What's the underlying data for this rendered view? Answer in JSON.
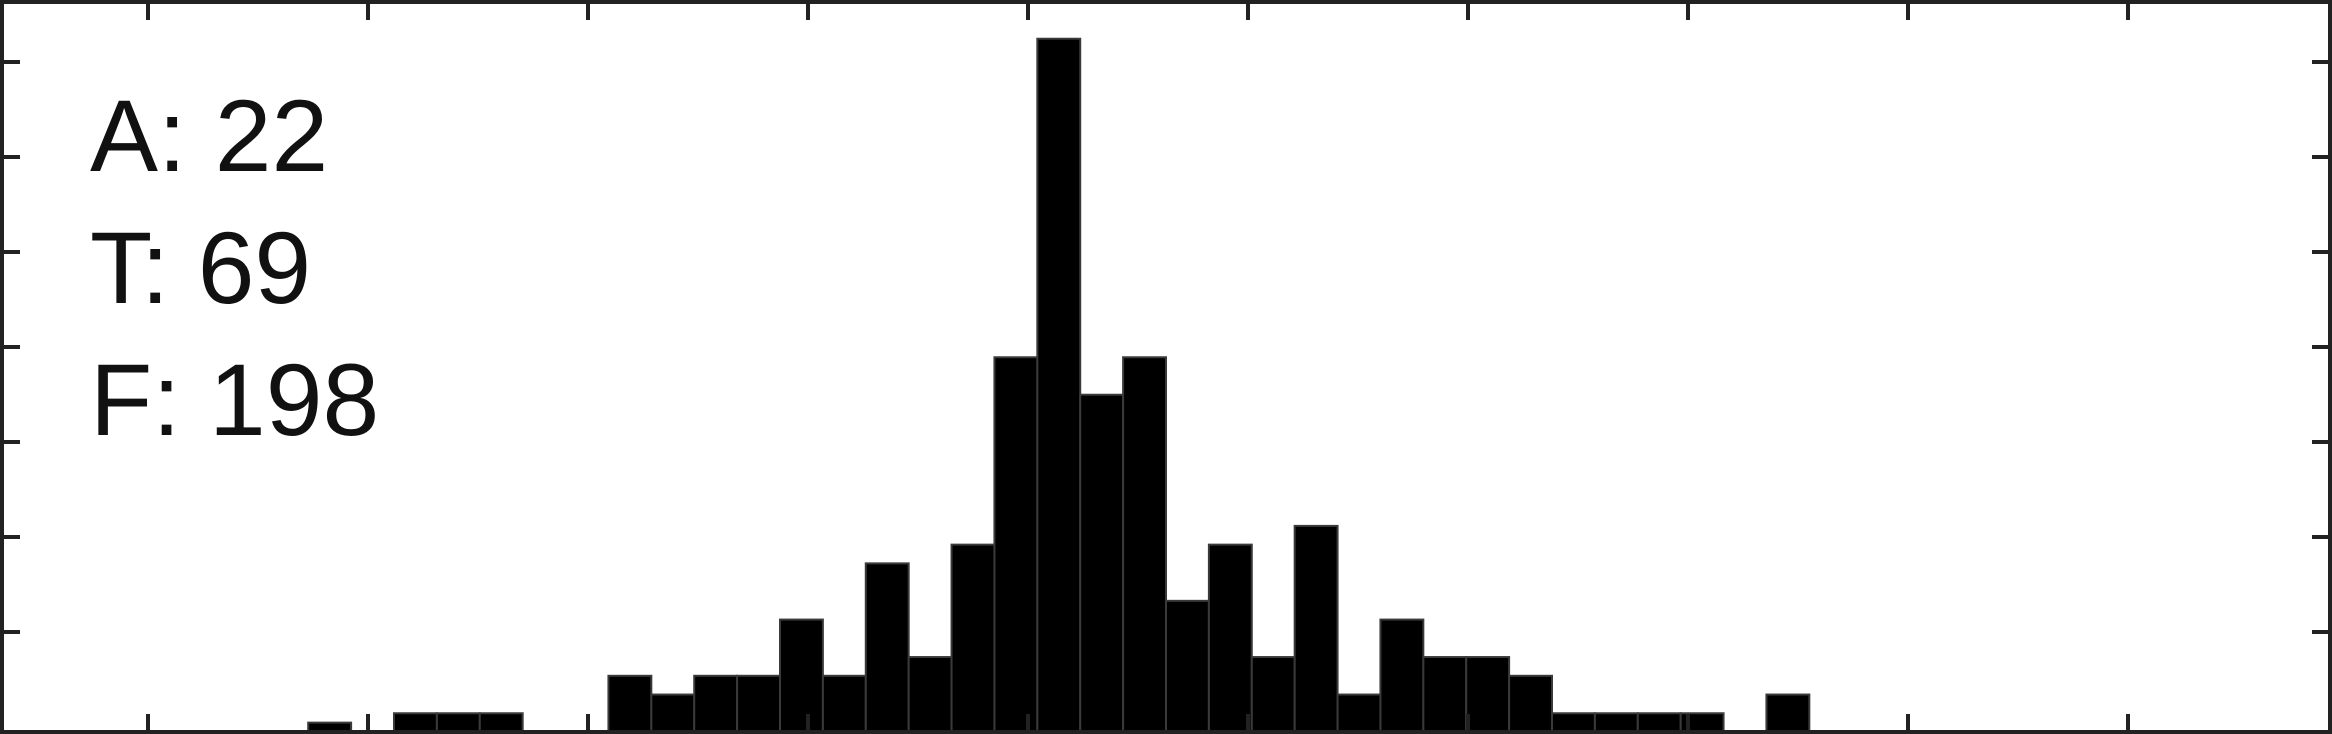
{
  "stats": [
    {
      "label": "A",
      "value": "22"
    },
    {
      "label": "T",
      "value": "69"
    },
    {
      "label": "F",
      "value": "198"
    }
  ],
  "chart_data": {
    "type": "bar",
    "title": "",
    "xlabel": "",
    "ylabel": "",
    "bin_start": 0,
    "bin_width": 1,
    "values": [
      0,
      0,
      0,
      0,
      0,
      0,
      0,
      0.5,
      0,
      1,
      1,
      1,
      0,
      0,
      3,
      2,
      3,
      3,
      6,
      3,
      9,
      4,
      10,
      20,
      37,
      18,
      20,
      7,
      10,
      4,
      11,
      2,
      6,
      4,
      4,
      3,
      1,
      1,
      1,
      1,
      0,
      2,
      0,
      0,
      0,
      0,
      0,
      0,
      0,
      0,
      0,
      0,
      0,
      0
    ],
    "ylim": [
      0,
      38
    ],
    "grid": false,
    "bar_color": "#000000"
  }
}
